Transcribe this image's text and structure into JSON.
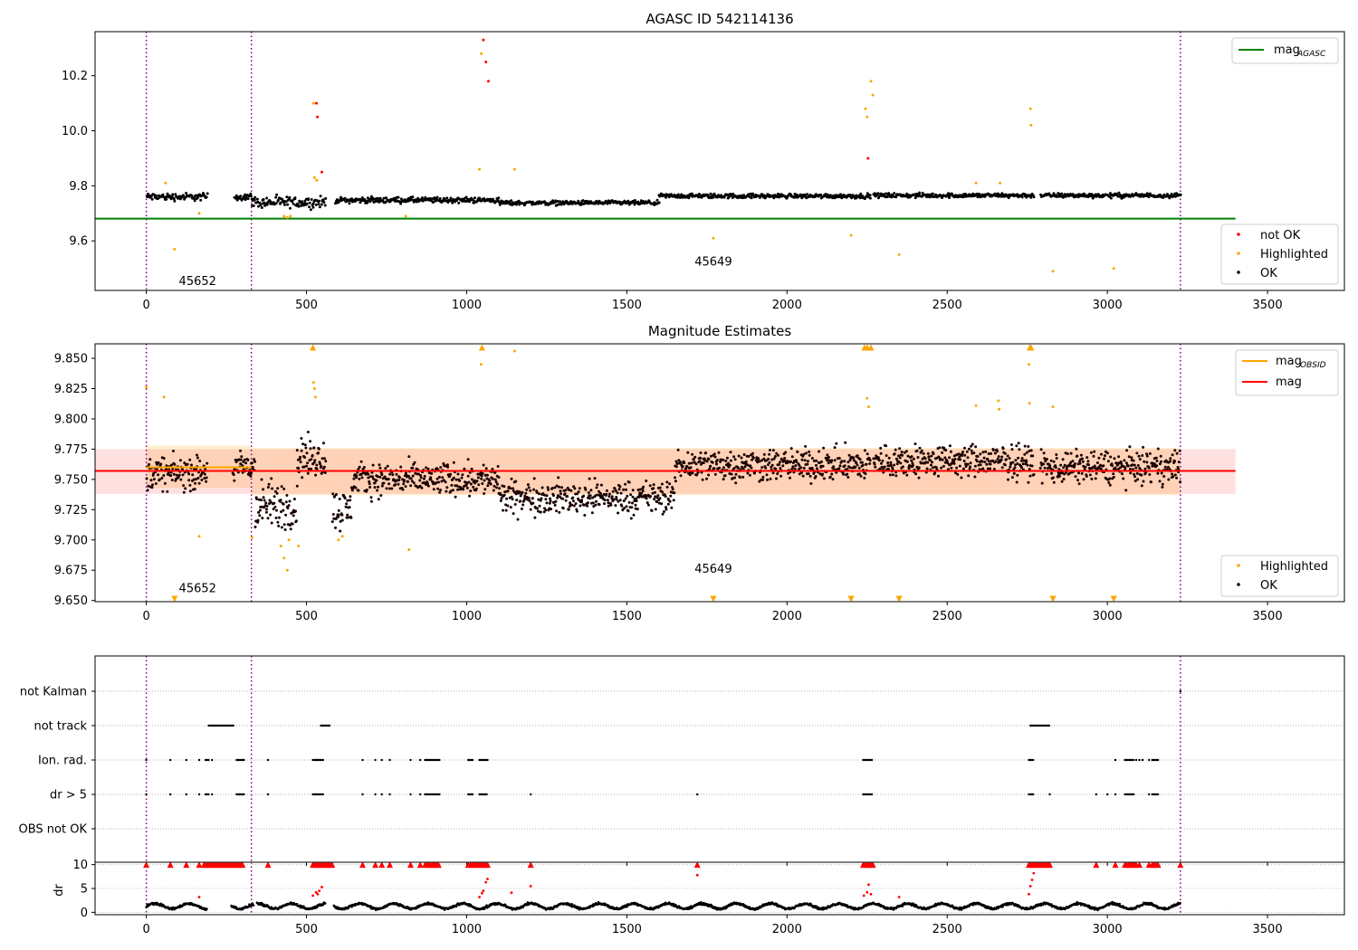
{
  "chart_data": [
    {
      "type": "scatter",
      "title": "AGASC ID 542114136",
      "xlim": [
        -160,
        3740
      ],
      "ylim": [
        9.42,
        10.36
      ],
      "xticks": [
        0,
        500,
        1000,
        1500,
        2000,
        2500,
        3000,
        3500
      ],
      "yticks": [
        9.6,
        9.8,
        10.0,
        10.2
      ],
      "ytick_labels": [
        "9.6",
        "9.8",
        "10.0",
        "10.2"
      ],
      "obsid_boundaries": [
        0,
        328,
        3228
      ],
      "obsid_labels": [
        {
          "text": "45652",
          "x": 160,
          "y": 9.44
        },
        {
          "text": "45649",
          "x": 1770,
          "y": 9.51
        }
      ],
      "lines": [
        {
          "name": "mag",
          "subscript": "AGASC",
          "y": 9.681,
          "x": [
            -160,
            3400
          ],
          "color": "#008000"
        }
      ],
      "series": [
        {
          "name": "not OK",
          "color": "#ff0000",
          "points": [
            [
              531,
              10.1
            ],
            [
              534,
              10.05
            ],
            [
              548,
              9.85
            ],
            [
              1052,
              10.33
            ],
            [
              1060,
              10.25
            ],
            [
              1068,
              10.18
            ],
            [
              2253,
              9.9
            ]
          ]
        },
        {
          "name": "Highlighted",
          "color": "#ffa500",
          "points": [
            [
              88,
              9.57
            ],
            [
              165,
              9.7
            ],
            [
              522,
              10.1
            ],
            [
              525,
              9.83
            ],
            [
              532,
              9.82
            ],
            [
              1040,
              9.86
            ],
            [
              1046,
              10.28
            ],
            [
              1150,
              9.86
            ],
            [
              1770,
              9.61
            ],
            [
              2200,
              9.62
            ],
            [
              2245,
              10.08
            ],
            [
              2250,
              10.05
            ],
            [
              2262,
              10.18
            ],
            [
              2268,
              10.13
            ],
            [
              2350,
              9.55
            ],
            [
              2760,
              10.08
            ],
            [
              2762,
              10.02
            ],
            [
              2830,
              9.49
            ],
            [
              3020,
              9.5
            ],
            [
              430,
              9.69
            ],
            [
              440,
              9.685
            ],
            [
              450,
              9.69
            ],
            [
              810,
              9.69
            ],
            [
              60,
              9.81
            ],
            [
              2590,
              9.81
            ],
            [
              2665,
              9.81
            ]
          ]
        },
        {
          "name": "OK",
          "color": "#000000",
          "segments": [
            {
              "x": [
                0,
                190
              ],
              "y": 9.76,
              "spread": 0.02
            },
            {
              "x": [
                275,
                330
              ],
              "y": 9.76,
              "spread": 0.02
            },
            {
              "x": [
                330,
                560
              ],
              "y": 9.74,
              "spread": 0.03
            },
            {
              "x": [
                590,
                1100
              ],
              "y": 9.748,
              "spread": 0.015
            },
            {
              "x": [
                1100,
                1600
              ],
              "y": 9.738,
              "spread": 0.012
            },
            {
              "x": [
                1600,
                2260
              ],
              "y": 9.763,
              "spread": 0.012
            },
            {
              "x": [
                2270,
                2770
              ],
              "y": 9.765,
              "spread": 0.012
            },
            {
              "x": [
                2790,
                3228
              ],
              "y": 9.765,
              "spread": 0.012
            }
          ]
        }
      ],
      "legend": [
        {
          "name": "mag",
          "subscript": "AGASC",
          "placement": "top-right"
        },
        {
          "placement": "bottom-right",
          "entries": [
            "not OK",
            "Highlighted",
            "OK"
          ]
        }
      ]
    },
    {
      "type": "scatter",
      "title": "Magnitude Estimates",
      "xlim": [
        -160,
        3740
      ],
      "ylim": [
        9.649,
        9.862
      ],
      "xticks": [
        0,
        500,
        1000,
        1500,
        2000,
        2500,
        3000,
        3500
      ],
      "yticks": [
        9.65,
        9.675,
        9.7,
        9.725,
        9.75,
        9.775,
        9.8,
        9.825,
        9.85
      ],
      "ytick_labels": [
        "9.650",
        "9.675",
        "9.700",
        "9.725",
        "9.750",
        "9.775",
        "9.800",
        "9.825",
        "9.850"
      ],
      "obsid_boundaries": [
        0,
        328,
        3228
      ],
      "obsid_labels": [
        {
          "text": "45652",
          "x": 160,
          "y": 9.657
        },
        {
          "text": "45649",
          "x": 1770,
          "y": 9.673
        }
      ],
      "bands": [
        {
          "x": [
            0,
            328
          ],
          "y": [
            9.743,
            9.778
          ],
          "color": "#ffa500",
          "opacity": 0.18
        },
        {
          "x": [
            328,
            3228
          ],
          "y": [
            9.737,
            9.776
          ],
          "color": "#ffa500",
          "opacity": 0.18
        },
        {
          "x": [
            -160,
            3400
          ],
          "y": [
            9.738,
            9.775
          ],
          "color": "#ff0000",
          "opacity": 0.12
        }
      ],
      "lines": [
        {
          "name": "mag",
          "subscript": "OBSID",
          "color": "#ffa500",
          "segments": [
            [
              0,
              328,
              9.76
            ],
            [
              328,
              3228,
              9.757
            ]
          ]
        },
        {
          "name": "mag",
          "color": "#ff0000",
          "y": 9.757,
          "x": [
            -160,
            3400
          ]
        }
      ],
      "series": [
        {
          "name": "Highlighted",
          "color": "#ffa500",
          "points": [
            [
              0,
              9.826
            ],
            [
              55,
              9.818
            ],
            [
              165,
              9.703
            ],
            [
              330,
              9.702
            ],
            [
              420,
              9.695
            ],
            [
              430,
              9.685
            ],
            [
              440,
              9.675
            ],
            [
              445,
              9.7
            ],
            [
              475,
              9.695
            ],
            [
              522,
              9.83
            ],
            [
              525,
              9.825
            ],
            [
              528,
              9.818
            ],
            [
              600,
              9.7
            ],
            [
              612,
              9.703
            ],
            [
              820,
              9.692
            ],
            [
              1045,
              9.845
            ],
            [
              1150,
              9.856
            ],
            [
              2250,
              9.817
            ],
            [
              2255,
              9.81
            ],
            [
              2590,
              9.811
            ],
            [
              2660,
              9.815
            ],
            [
              2662,
              9.808
            ],
            [
              2755,
              9.845
            ],
            [
              2757,
              9.813
            ],
            [
              2830,
              9.81
            ]
          ]
        },
        {
          "name": "OK",
          "color": "#000000",
          "segments": [
            {
              "x": [
                0,
                190
              ],
              "y": 9.755,
              "spread": 0.02
            },
            {
              "x": [
                270,
                340
              ],
              "y": 9.76,
              "spread": 0.02
            },
            {
              "x": [
                340,
                470
              ],
              "y": 9.728,
              "spread": 0.03
            },
            {
              "x": [
                470,
                560
              ],
              "y": 9.768,
              "spread": 0.025
            },
            {
              "x": [
                580,
                640
              ],
              "y": 9.725,
              "spread": 0.025
            },
            {
              "x": [
                640,
                1100
              ],
              "y": 9.75,
              "spread": 0.02
            },
            {
              "x": [
                1100,
                1650
              ],
              "y": 9.735,
              "spread": 0.02
            },
            {
              "x": [
                1650,
                2260
              ],
              "y": 9.762,
              "spread": 0.02
            },
            {
              "x": [
                2270,
                2770
              ],
              "y": 9.765,
              "spread": 0.02
            },
            {
              "x": [
                2790,
                3228
              ],
              "y": 9.76,
              "spread": 0.02
            }
          ]
        }
      ],
      "offscale_markers": {
        "top": [
          520,
          1048,
          2242,
          2250,
          2262,
          2758,
          2762
        ],
        "bottom": [
          88,
          1770,
          2200,
          2350,
          2830,
          3020
        ]
      },
      "legend": [
        {
          "placement": "top-right",
          "entries": [
            "mag_OBSID",
            "mag"
          ]
        },
        {
          "placement": "bottom-right",
          "entries": [
            "Highlighted",
            "OK"
          ]
        }
      ]
    },
    {
      "type": "scatter",
      "title": "",
      "xlim": [
        -160,
        3740
      ],
      "xticks": [
        0,
        500,
        1000,
        1500,
        2000,
        2500,
        3000,
        3500
      ],
      "obsid_boundaries": [
        0,
        328,
        3228
      ],
      "flag_rows": [
        "not Kalman",
        "not track",
        "Ion. rad.",
        "dr > 5",
        "OBS not OK"
      ],
      "flags": {
        "not Kalman": {
          "points": [
            3228
          ],
          "ranges": []
        },
        "not track": {
          "points": [],
          "ranges": [
            [
              195,
              275
            ],
            [
              545,
              575
            ],
            [
              2760,
              2820
            ]
          ]
        },
        "Ion. rad.": {
          "points": [
            0,
            75,
            125,
            165,
            205,
            380,
            675,
            715,
            735,
            760,
            825,
            855,
            1065,
            3025,
            3090,
            3100,
            3110,
            3130
          ],
          "ranges": [
            [
              185,
              195
            ],
            [
              282,
              305
            ],
            [
              520,
              555
            ],
            [
              870,
              915
            ],
            [
              1005,
              1020
            ],
            [
              1040,
              1065
            ],
            [
              2238,
              2265
            ],
            [
              2755,
              2770
            ],
            [
              3055,
              3085
            ],
            [
              3140,
              3160
            ]
          ]
        },
        "dr > 5": {
          "points": [
            0,
            75,
            125,
            165,
            205,
            380,
            675,
            715,
            735,
            760,
            825,
            855,
            1200,
            1720,
            2820,
            2965,
            3000,
            3025,
            3130
          ],
          "ranges": [
            [
              185,
              195
            ],
            [
              282,
              305
            ],
            [
              520,
              555
            ],
            [
              870,
              915
            ],
            [
              1005,
              1020
            ],
            [
              1040,
              1065
            ],
            [
              2238,
              2265
            ],
            [
              2755,
              2770
            ],
            [
              3055,
              3085
            ],
            [
              3140,
              3160
            ]
          ]
        },
        "OBS not OK": {
          "points": [],
          "ranges": []
        }
      }
    },
    {
      "type": "scatter",
      "title": "",
      "ylabel": "dr",
      "xlim": [
        -160,
        3740
      ],
      "ylim": [
        -0.5,
        10.5
      ],
      "xticks": [
        0,
        500,
        1000,
        1500,
        2000,
        2500,
        3000,
        3500
      ],
      "yticks": [
        0,
        5,
        10
      ],
      "ytick_labels": [
        "0",
        "5",
        "10"
      ],
      "obsid_boundaries": [
        0,
        328,
        3228
      ],
      "clipped_value": 10,
      "series": [
        {
          "name": "dr",
          "color": "#000000",
          "x_range": [
            0,
            3228
          ],
          "gaps": [
            [
              190,
              265
            ],
            [
              335,
              345
            ],
            [
              560,
              585
            ]
          ],
          "mean": 1.3,
          "spread": 0.7
        },
        {
          "name": "dr > 5",
          "color": "#ff0000",
          "points": [
            [
              165,
              3.2
            ],
            [
              520,
              3.5
            ],
            [
              530,
              4.2
            ],
            [
              535,
              3.8
            ],
            [
              540,
              4.5
            ],
            [
              548,
              5.3
            ],
            [
              1040,
              3.2
            ],
            [
              1048,
              4.0
            ],
            [
              1052,
              4.5
            ],
            [
              1060,
              6.3
            ],
            [
              1065,
              7.0
            ],
            [
              1140,
              4.1
            ],
            [
              1200,
              5.5
            ],
            [
              1720,
              7.8
            ],
            [
              2240,
              3.5
            ],
            [
              2250,
              4.2
            ],
            [
              2255,
              5.8
            ],
            [
              2262,
              3.8
            ],
            [
              2350,
              3.2
            ],
            [
              2755,
              3.8
            ],
            [
              2760,
              5.5
            ],
            [
              2765,
              6.8
            ],
            [
              2770,
              8.2
            ]
          ]
        },
        {
          "name": "clipped",
          "color": "#ff0000",
          "marker": "triangle",
          "points": [
            0,
            75,
            125,
            165,
            380,
            675,
            715,
            735,
            760,
            825,
            855,
            1200,
            1720,
            2820,
            2965,
            3025,
            3090,
            3100,
            3130,
            3228
          ],
          "ranges": [
            [
              180,
              305
            ],
            [
              520,
              580
            ],
            [
              870,
              915
            ],
            [
              1005,
              1065
            ],
            [
              2238,
              2268
            ],
            [
              2755,
              2820
            ],
            [
              3055,
              3085
            ],
            [
              3140,
              3160
            ]
          ]
        }
      ]
    }
  ]
}
